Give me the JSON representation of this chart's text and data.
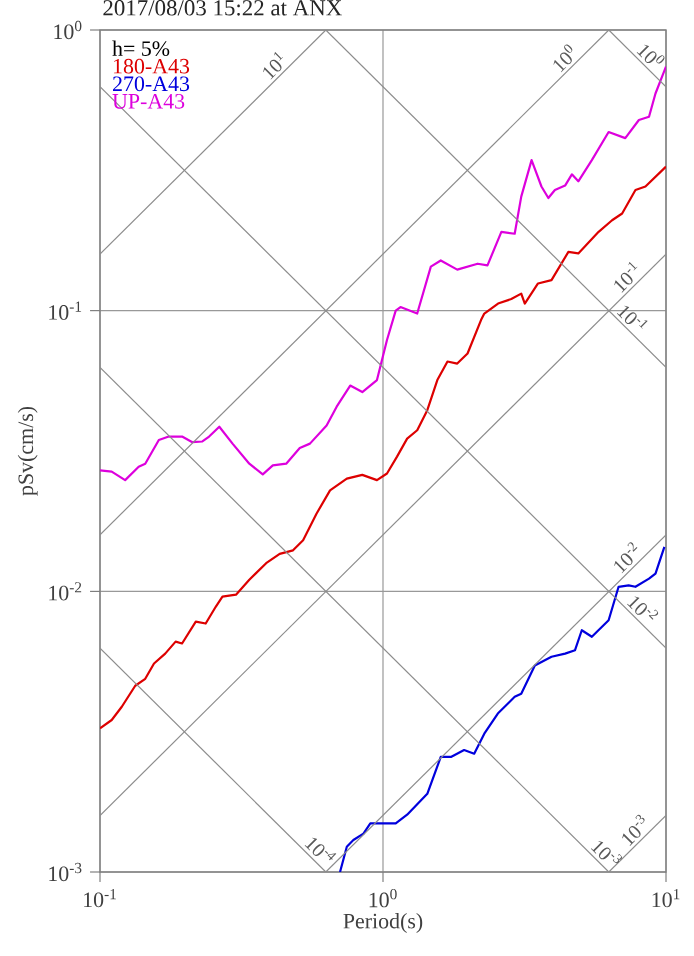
{
  "chart_data": {
    "type": "line",
    "title": "2017/08/03 15:22 at ANX",
    "xlabel": "Period(s)",
    "ylabel": "pSv(cm/s)",
    "legend_title": "h= 5%",
    "log": "xy",
    "grid": true,
    "legend": "top left",
    "xlim": [
      0.1,
      10
    ],
    "ylim": [
      0.001,
      1
    ],
    "xticks": [
      {
        "value": 0.1,
        "label": "10$^{-1}$"
      },
      {
        "value": 1,
        "label": "10$^{0}$"
      },
      {
        "value": 10,
        "label": "10$^{1}$"
      }
    ],
    "yticks": [
      {
        "value": 0.001,
        "label": "10$^{-3}$"
      },
      {
        "value": 0.01,
        "label": "10$^{-2}$"
      },
      {
        "value": 0.1,
        "label": "10$^{-1}$"
      },
      {
        "value": 1,
        "label": "10$^{0}$"
      }
    ],
    "series": [
      {
        "name": "180-A43",
        "color": "#dd0000",
        "x": [
          0.1,
          0.11,
          0.1194,
          0.1332,
          0.1445,
          0.1552,
          0.17,
          0.185,
          0.195,
          0.218,
          0.2363,
          0.2564,
          0.2708,
          0.3024,
          0.337,
          0.3865,
          0.4315,
          0.481,
          0.522,
          0.582,
          0.65,
          0.745,
          0.845,
          0.952,
          1.033,
          1.121,
          1.217,
          1.321,
          1.434,
          1.556,
          1.69,
          1.83,
          1.99,
          2.22,
          2.28,
          2.55,
          2.84,
          3.08,
          3.17,
          3.53,
          3.94,
          4.52,
          4.9,
          5.78,
          6.45,
          7.0,
          7.8,
          8.46,
          10
        ],
        "values": [
          0.00325,
          0.00348,
          0.00388,
          0.00461,
          0.00488,
          0.00553,
          0.006,
          0.00662,
          0.00652,
          0.0078,
          0.00768,
          0.00881,
          0.00957,
          0.00973,
          0.011,
          0.0126,
          0.0136,
          0.014,
          0.0152,
          0.0189,
          0.0229,
          0.0252,
          0.026,
          0.0249,
          0.0263,
          0.0302,
          0.035,
          0.0375,
          0.0442,
          0.0566,
          0.0659,
          0.0648,
          0.0704,
          0.0926,
          0.0977,
          0.106,
          0.11,
          0.115,
          0.106,
          0.125,
          0.1285,
          0.162,
          0.16,
          0.191,
          0.21,
          0.222,
          0.269,
          0.277,
          0.326
        ]
      },
      {
        "name": "270-A43",
        "color": "#0000dd",
        "x": [
          0.705,
          0.745,
          0.786,
          0.853,
          0.902,
          1.109,
          1.217,
          1.434,
          1.6,
          1.738,
          1.935,
          2.1,
          2.28,
          2.545,
          2.92,
          3.08,
          3.44,
          3.94,
          4.4,
          4.77,
          5.04,
          5.47,
          6.27,
          6.8,
          7.38,
          7.8,
          8.71,
          9.18,
          9.87
        ],
        "values": [
          0.001,
          0.00123,
          0.0013,
          0.00137,
          0.00149,
          0.00149,
          0.0016,
          0.0019,
          0.00257,
          0.00257,
          0.00272,
          0.00264,
          0.00311,
          0.00367,
          0.00421,
          0.00432,
          0.00544,
          0.00585,
          0.006,
          0.00617,
          0.00727,
          0.00689,
          0.00789,
          0.01038,
          0.0105,
          0.01038,
          0.0111,
          0.01157,
          0.0144
        ]
      },
      {
        "name": "UP-A43",
        "color": "#dd00dd",
        "x": [
          0.1,
          0.11,
          0.1227,
          0.137,
          0.1445,
          0.1614,
          0.175,
          0.195,
          0.212,
          0.23,
          0.243,
          0.264,
          0.294,
          0.337,
          0.376,
          0.408,
          0.455,
          0.508,
          0.552,
          0.632,
          0.686,
          0.766,
          0.845,
          0.952,
          1.033,
          1.109,
          1.153,
          1.321,
          1.476,
          1.6,
          1.83,
          2.16,
          2.34,
          2.62,
          2.92,
          3.08,
          3.35,
          3.63,
          3.84,
          4.05,
          4.4,
          4.65,
          4.9,
          5.47,
          6.27,
          7.18,
          8.02,
          8.71,
          9.18,
          10
        ],
        "values": [
          0.027,
          0.0267,
          0.0249,
          0.0278,
          0.0285,
          0.0346,
          0.0356,
          0.0356,
          0.034,
          0.0342,
          0.0356,
          0.0386,
          0.0336,
          0.0285,
          0.0261,
          0.0281,
          0.0285,
          0.0324,
          0.0336,
          0.039,
          0.0455,
          0.0541,
          0.0513,
          0.0566,
          0.0786,
          0.1,
          0.103,
          0.0977,
          0.1435,
          0.151,
          0.14,
          0.147,
          0.145,
          0.191,
          0.188,
          0.255,
          0.344,
          0.277,
          0.252,
          0.269,
          0.279,
          0.306,
          0.289,
          0.344,
          0.433,
          0.412,
          0.478,
          0.491,
          0.594,
          0.741
        ]
      },
      {
        "color": "#8c8c8c",
        "x": [
          0.1,
          0.628
        ],
        "values": [
          0.159,
          1
        ]
      },
      {
        "color": "#8c8c8c",
        "x": [
          0.1,
          6.28
        ],
        "values": [
          0.0159,
          1
        ]
      },
      {
        "color": "#8c8c8c",
        "x": [
          0.1,
          10
        ],
        "values": [
          0.00159,
          0.159
        ]
      },
      {
        "color": "#8c8c8c",
        "x": [
          0.628,
          10
        ],
        "values": [
          0.001,
          0.0159
        ]
      },
      {
        "color": "#8c8c8c",
        "x": [
          6.28,
          10
        ],
        "values": [
          0.001,
          0.00159
        ]
      },
      {
        "color": "#8c8c8c",
        "x": [
          6.28,
          10
        ],
        "values": [
          1,
          0.628
        ]
      },
      {
        "color": "#8c8c8c",
        "x": [
          0.628,
          10
        ],
        "values": [
          1,
          0.0628
        ]
      },
      {
        "color": "#8c8c8c",
        "x": [
          0.1,
          10
        ],
        "values": [
          0.628,
          0.00628
        ]
      },
      {
        "color": "#8c8c8c",
        "x": [
          0.1,
          6.28
        ],
        "values": [
          0.0628,
          0.001
        ]
      },
      {
        "color": "#8c8c8c",
        "x": [
          0.1,
          0.628
        ],
        "values": [
          0.00628,
          0.001
        ]
      }
    ],
    "annotations": [
      {
        "text": "10$^{1}$",
        "x": 0.44,
        "y": 0.7
      },
      {
        "text": "10$^{0}$",
        "x": 4.67,
        "y": 0.743
      },
      {
        "text": "10$^{0}$",
        "x": 8.28,
        "y": 0.759
      },
      {
        "text": "10$^{-1}$",
        "x": 7.76,
        "y": 0.1235
      },
      {
        "text": "10$^{-1}$",
        "x": 7.14,
        "y": 0.088
      },
      {
        "text": "10$^{-2}$",
        "x": 7.76,
        "y": 0.01235
      },
      {
        "text": "10$^{-2}$",
        "x": 7.76,
        "y": 0.0081
      },
      {
        "text": "10$^{-3}$",
        "x": 8.28,
        "y": 0.00132
      },
      {
        "text": "10$^{-3}$",
        "x": 5.78,
        "y": 0.00109
      },
      {
        "text": "10$^{-4}$",
        "x": 0.563,
        "y": 0.00112
      }
    ]
  }
}
